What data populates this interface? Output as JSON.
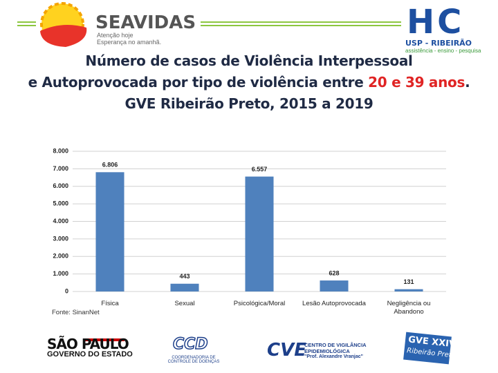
{
  "chart_data": {
    "type": "bar",
    "title_lines": [
      [
        "Número de casos de Violência Interpessoal"
      ],
      [
        "e Autoprovocada por tipo de violência entre",
        "20 e 39 anos",
        "."
      ],
      [
        "GVE Ribeirão Preto, 2015 a 2019"
      ]
    ],
    "highlight_color": "#e02424",
    "categories": [
      "Física",
      "Sexual",
      "Psicológica/Moral",
      "Lesão Autoprovocada",
      "Negligência ou Abandono"
    ],
    "values": [
      6806,
      443,
      6557,
      628,
      131
    ],
    "value_labels": [
      "6.806",
      "443",
      "6.557",
      "628",
      "131"
    ],
    "color": "#4f81bd",
    "ylim": [
      0,
      8000
    ],
    "yticks": [
      0,
      {
        "value": 1000,
        "label": "1.000"
      },
      {
        "value": 2000,
        "label": "2.000"
      },
      {
        "value": 3000,
        "label": "3.000"
      },
      {
        "value": 4000,
        "label": "4.000"
      },
      {
        "value": 5000,
        "label": "5.000"
      },
      {
        "value": 6000,
        "label": "6.000"
      },
      {
        "value": 7000,
        "label": "7.000"
      },
      {
        "value": 8000,
        "label": "8.000"
      }
    ],
    "grid": true,
    "source": "Fonte: SinanNet"
  },
  "logos": {
    "seavidas": "SEAVIDAS",
    "seavidas_tag1": "Atenção hoje",
    "seavidas_tag2": "Esperança no amanhã.",
    "hc": "HC",
    "hc_name": "USP - RIBEIRÃO",
    "hc_tag": "assistência - ensino - pesquisa",
    "sp1": "SÃO PAULO",
    "sp2": "GOVERNO DO ESTADO",
    "ccd": "CCD",
    "ccd_name": "COORDENADORIA DE CONTROLE DE DOENÇAS",
    "cve": "CVE",
    "cve_name1": "CENTRO DE VIGILÂNCIA",
    "cve_name2": "EPIDEMIOLÓGICA",
    "cve_name3": "\"Prof. Alexandre Vranjac\"",
    "gve1": "GVE XXIV",
    "gve2": "Ribeirão Preto"
  }
}
